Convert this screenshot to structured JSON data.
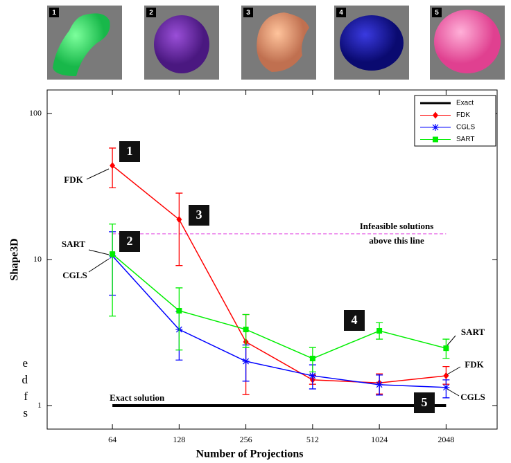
{
  "thumbnail_labels": [
    "1",
    "2",
    "3",
    "4",
    "5"
  ],
  "side_fragments": [
    "e",
    "d",
    "f",
    "s"
  ],
  "chart_data": {
    "type": "line",
    "xlabel": "Number of Projections",
    "ylabel": "Shape3D",
    "x": [
      64,
      128,
      256,
      512,
      1024,
      2048
    ],
    "xlim": [
      32.5,
      3480
    ],
    "ylim": [
      0.69,
      145
    ],
    "xticks": [
      64,
      128,
      256,
      512,
      1024,
      2048
    ],
    "yticks": [
      1,
      10,
      100
    ],
    "log_x": true,
    "log_y": true,
    "legend": "upper right",
    "series": [
      {
        "name": "FDK",
        "color": "#ff0000",
        "marker": "diamond",
        "values": [
          44,
          18.8,
          2.73,
          1.5,
          1.43,
          1.6
        ],
        "error_low": [
          31,
          9.1,
          1.19,
          1.4,
          1.2,
          1.4
        ],
        "error_high": [
          58,
          28.5,
          4.2,
          1.62,
          1.65,
          1.85
        ]
      },
      {
        "name": "CGLS",
        "color": "#0000ff",
        "marker": "asterisk",
        "values": [
          10.6,
          3.32,
          2.01,
          1.6,
          1.39,
          1.33
        ],
        "error_low": [
          5.7,
          2.05,
          1.47,
          1.3,
          1.18,
          1.13
        ],
        "error_high": [
          15.5,
          4.4,
          2.6,
          1.9,
          1.62,
          1.5
        ]
      },
      {
        "name": "SART",
        "color": "#00ee00",
        "marker": "square",
        "values": [
          10.9,
          4.46,
          3.32,
          2.1,
          3.25,
          2.47
        ],
        "error_low": [
          4.1,
          2.4,
          2.5,
          1.7,
          2.85,
          2.1
        ],
        "error_high": [
          17.5,
          6.4,
          4.2,
          2.5,
          3.7,
          2.85
        ]
      }
    ],
    "reference": {
      "name": "Exact",
      "value": 1,
      "label": "Exact solution",
      "color": "#000000"
    },
    "threshold": {
      "value": 15,
      "label": [
        "Infeasible solutions",
        "above this line"
      ],
      "color": "#e040e0"
    },
    "callouts": [
      "1",
      "2",
      "3",
      "4",
      "5"
    ],
    "series_annotations": [
      "FDK",
      "SART",
      "CGLS",
      "SART",
      "FDK",
      "CGLS"
    ]
  }
}
